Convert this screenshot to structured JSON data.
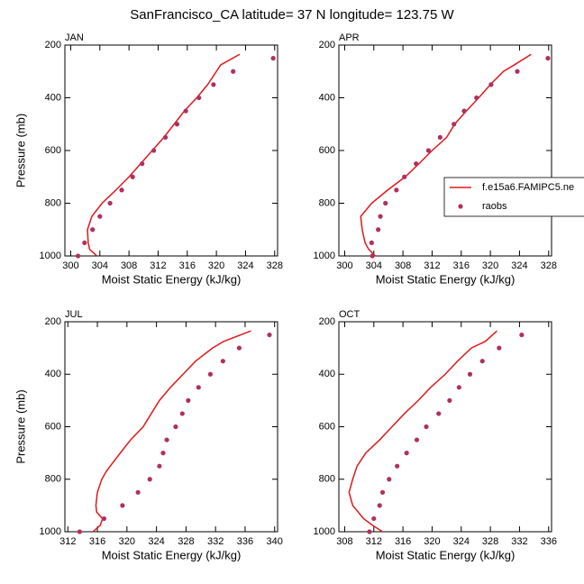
{
  "title": "SanFrancisco_CA  latitude= 37 N longitude= 123.75 W",
  "chart_data": [
    {
      "type": "line",
      "label": "JAN",
      "xlabel": "Moist Static Energy (kJ/kg)",
      "ylabel": "Pressure (mb)",
      "xlim": [
        299.2,
        328.4
      ],
      "xticks": [
        300,
        304,
        308,
        312,
        316,
        320,
        324,
        328
      ],
      "ylim": [
        1000,
        200
      ],
      "yticks": [
        200,
        400,
        600,
        800,
        1000
      ],
      "series": [
        {
          "style": "line",
          "color": "#e0181b",
          "x": [
            303.6,
            302.6,
            302.4,
            302.3,
            302.9,
            304.3,
            306.2,
            308.0,
            309.6,
            311.2,
            312.8,
            314.2,
            315.6,
            317.3,
            318.8,
            320.0,
            320.6,
            323.2
          ],
          "y": [
            1000,
            975,
            950,
            900,
            850,
            800,
            750,
            700,
            650,
            600,
            550,
            500,
            450,
            400,
            350,
            300,
            275,
            235
          ]
        },
        {
          "style": "markers",
          "color": "#b03060",
          "x": [
            301.0,
            301.9,
            303.0,
            304.0,
            305.4,
            307.0,
            308.5,
            309.8,
            311.4,
            313.0,
            314.6,
            315.8,
            317.6,
            319.6,
            322.3,
            327.8
          ],
          "y": [
            1000,
            950,
            900,
            850,
            800,
            750,
            700,
            650,
            600,
            550,
            500,
            450,
            400,
            350,
            300,
            250
          ]
        }
      ]
    },
    {
      "type": "line",
      "label": "APR",
      "xlabel": "Moist Static Energy (kJ/kg)",
      "xlim": [
        299.2,
        328.4
      ],
      "xticks": [
        300,
        304,
        308,
        312,
        316,
        320,
        324,
        328
      ],
      "ylim": [
        1000,
        200
      ],
      "yticks": [
        200,
        400,
        600,
        800,
        1000
      ],
      "legend": "right",
      "series": [
        {
          "name": "f.e15a6.FAMIPC5.ne",
          "style": "line",
          "color": "#e0181b",
          "x": [
            304.2,
            303.3,
            302.8,
            302.4,
            302.2,
            303.7,
            305.9,
            308.3,
            310.2,
            312.0,
            314.0,
            315.1,
            316.7,
            318.4,
            320.0,
            321.8,
            323.3,
            325.6
          ],
          "y": [
            1000,
            975,
            950,
            900,
            850,
            800,
            750,
            700,
            650,
            600,
            550,
            500,
            450,
            400,
            350,
            300,
            275,
            235
          ]
        },
        {
          "name": "raobs",
          "style": "markers",
          "color": "#b03060",
          "x": [
            303.8,
            303.7,
            304.6,
            304.9,
            305.6,
            307.1,
            308.2,
            309.8,
            311.5,
            313.1,
            315.0,
            316.4,
            318.1,
            320.1,
            323.7,
            327.9
          ],
          "y": [
            1000,
            950,
            900,
            850,
            800,
            750,
            700,
            650,
            600,
            550,
            500,
            450,
            400,
            350,
            300,
            250
          ]
        }
      ]
    },
    {
      "type": "line",
      "label": "JUL",
      "xlabel": "Moist Static Energy (kJ/kg)",
      "ylabel": "Pressure (mb)",
      "xlim": [
        311.6,
        340.4
      ],
      "xticks": [
        312,
        316,
        320,
        324,
        328,
        332,
        336,
        340
      ],
      "ylim": [
        1000,
        200
      ],
      "yticks": [
        200,
        400,
        600,
        800,
        1000
      ],
      "series": [
        {
          "style": "line",
          "color": "#e0181b",
          "x": [
            315.4,
            316.4,
            316.7,
            315.9,
            315.8,
            316.0,
            316.6,
            317.2,
            319.1,
            320.5,
            322.2,
            323.3,
            324.4,
            325.9,
            327.6,
            329.3,
            331.6,
            333.1,
            336.8
          ],
          "y": [
            1000,
            975,
            950,
            925,
            900,
            850,
            800,
            770,
            700,
            650,
            600,
            550,
            500,
            450,
            400,
            350,
            300,
            275,
            235
          ]
        },
        {
          "style": "markers",
          "color": "#b03060",
          "x": [
            313.6,
            316.9,
            319.4,
            321.5,
            323.1,
            324.4,
            324.9,
            325.4,
            326.6,
            327.5,
            328.3,
            329.7,
            331.3,
            333.0,
            335.2,
            339.3
          ],
          "y": [
            1000,
            950,
            900,
            850,
            800,
            750,
            700,
            650,
            600,
            550,
            500,
            450,
            400,
            350,
            300,
            250
          ]
        }
      ]
    },
    {
      "type": "line",
      "label": "OCT",
      "xlabel": "Moist Static Energy (kJ/kg)",
      "xlim": [
        307.2,
        336.4
      ],
      "xticks": [
        308,
        312,
        316,
        320,
        324,
        328,
        332,
        336
      ],
      "ylim": [
        1000,
        200
      ],
      "yticks": [
        200,
        400,
        600,
        800,
        1000
      ],
      "series": [
        {
          "style": "line",
          "color": "#e0181b",
          "x": [
            313.2,
            311.8,
            310.6,
            309.1,
            308.6,
            309.1,
            309.7,
            310.9,
            312.8,
            314.5,
            316.2,
            318.1,
            319.8,
            321.8,
            323.5,
            325.4,
            327.3,
            328.9
          ],
          "y": [
            1000,
            975,
            950,
            900,
            850,
            800,
            750,
            700,
            650,
            600,
            550,
            500,
            450,
            400,
            350,
            300,
            275,
            235
          ]
        },
        {
          "style": "markers",
          "color": "#b03060",
          "x": [
            311.4,
            312.0,
            312.8,
            313.2,
            314.1,
            315.2,
            316.5,
            317.9,
            319.2,
            320.9,
            322.4,
            323.7,
            325.2,
            326.9,
            329.2,
            332.3
          ],
          "y": [
            1000,
            950,
            900,
            850,
            800,
            750,
            700,
            650,
            600,
            550,
            500,
            450,
            400,
            350,
            300,
            250
          ]
        }
      ]
    }
  ]
}
